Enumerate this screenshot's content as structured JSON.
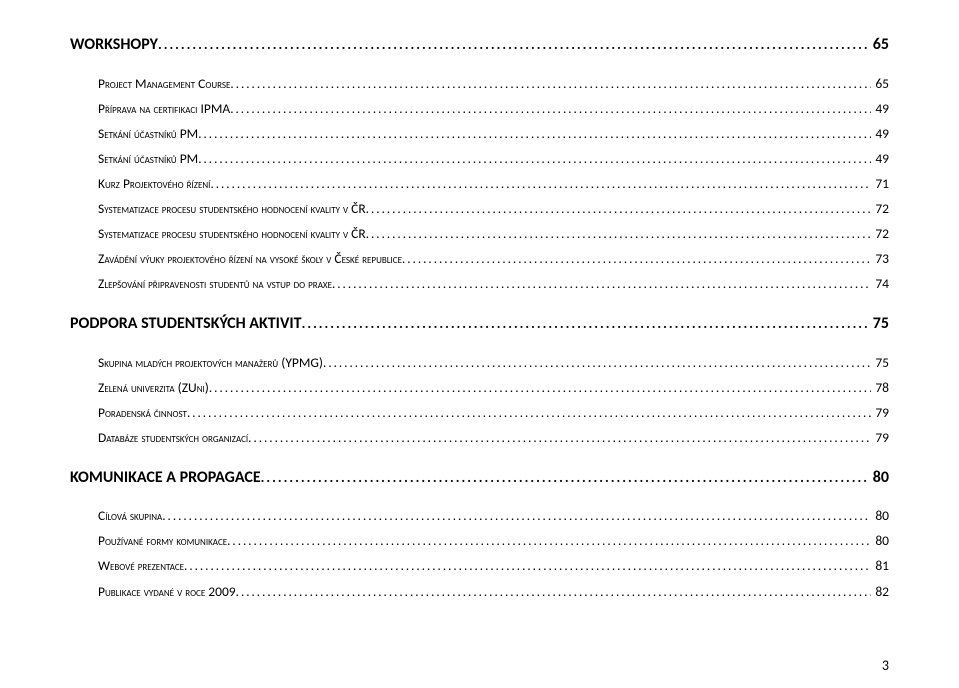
{
  "toc": [
    {
      "level": 1,
      "label": "WORKSHOPY",
      "page": "65"
    },
    {
      "level": 2,
      "label": "Project Management Course",
      "page": "65"
    },
    {
      "level": 2,
      "label": "Příprava na certifikaci IPMA",
      "page": "49"
    },
    {
      "level": 2,
      "label": "Setkání účastníků PM",
      "page": "49"
    },
    {
      "level": 2,
      "label": "Setkání účastníků PM",
      "page": "49"
    },
    {
      "level": 2,
      "label": "Kurz Projektového řízení",
      "page": "71"
    },
    {
      "level": 2,
      "label": "Systematizace procesu studentského hodnocení kvality v ČR",
      "page": "72"
    },
    {
      "level": 2,
      "label": "Systematizace procesu studentského hodnocení kvality v ČR",
      "page": "72"
    },
    {
      "level": 2,
      "label": "Zavádění výuky projektového řízení na vysoké školy v České republice",
      "page": "73"
    },
    {
      "level": 2,
      "label": "Zlepšování připravenosti studentů na vstup do praxe",
      "page": "74"
    },
    {
      "level": 1,
      "label": "PODPORA STUDENTSKÝCH AKTIVIT",
      "page": "75"
    },
    {
      "level": 2,
      "label": "Skupina mladých projektových manažerů (YPMG)",
      "page": "75"
    },
    {
      "level": 2,
      "label": "Zelená univerzita (ZUni)",
      "page": "78"
    },
    {
      "level": 2,
      "label": "Poradenská činnost",
      "page": "79"
    },
    {
      "level": 2,
      "label": "Databáze studentských organizací",
      "page": "79"
    },
    {
      "level": 1,
      "label": "KOMUNIKACE A PROPAGACE",
      "page": "80"
    },
    {
      "level": 2,
      "label": "Cílová skupina",
      "page": "80"
    },
    {
      "level": 2,
      "label": "Používané formy komunikace",
      "page": "80"
    },
    {
      "level": 2,
      "label": "Webové prezentace",
      "page": "81"
    },
    {
      "level": 2,
      "label": "Publikace vydané v roce 2009",
      "page": "82"
    }
  ],
  "page_number": "3"
}
